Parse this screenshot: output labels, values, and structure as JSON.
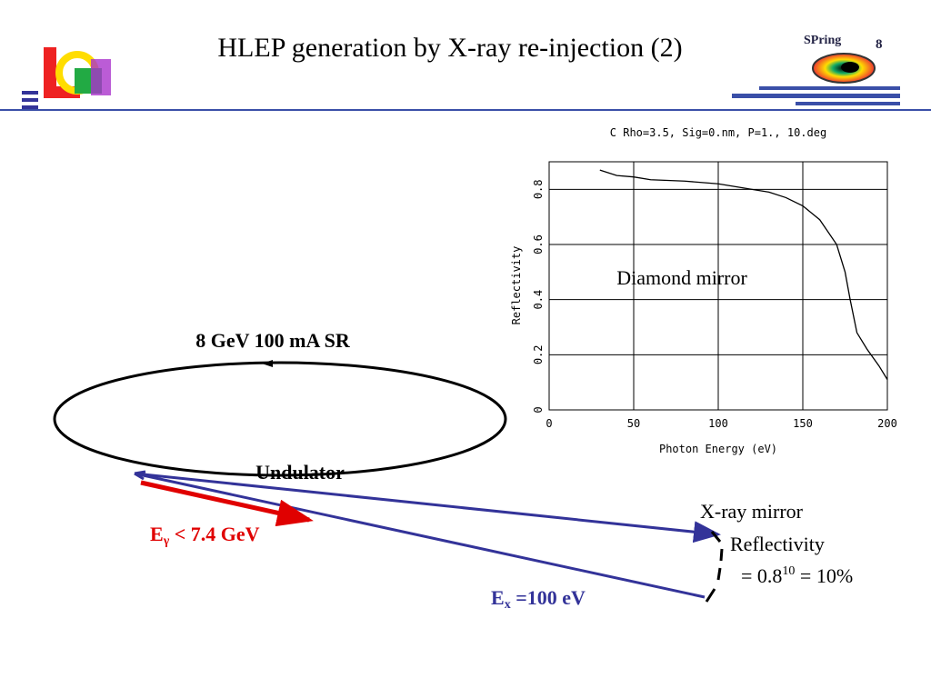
{
  "header": {
    "title": "HLEP generation by X-ray re-injection (2)",
    "logo_text": "SPring",
    "logo_number": "8"
  },
  "diagram": {
    "ring_label": "8 GeV 100 mA SR",
    "undulator_label": "Undulator",
    "gamma_label": {
      "main": "E",
      "sub": "γ",
      "rest": " < 7.4 GeV"
    },
    "xray_label": {
      "main": "E",
      "sub": "x",
      "rest": " =100 eV"
    },
    "mirror_label": "X-ray mirror",
    "reflectivity_label": "Reflectivity",
    "reflectivity_value": {
      "base": "= 0.8",
      "exp": "10",
      "rest": " = 10%"
    }
  },
  "chart_data": {
    "type": "line",
    "title": "C Rho=3.5, Sig=0.nm, P=1., 10.deg",
    "x_label": "Photon Energy (eV)",
    "y_label": "Reflectivity",
    "annotation": "Diamond mirror",
    "x": [
      30,
      40,
      50,
      60,
      80,
      100,
      120,
      130,
      140,
      150,
      160,
      170,
      175,
      178,
      182,
      188,
      195,
      200
    ],
    "values": [
      0.87,
      0.85,
      0.845,
      0.835,
      0.83,
      0.82,
      0.8,
      0.79,
      0.77,
      0.74,
      0.69,
      0.6,
      0.5,
      0.4,
      0.28,
      0.22,
      0.16,
      0.11
    ],
    "color": "#000000",
    "xlim": [
      0,
      200
    ],
    "ylim": [
      0,
      0.9
    ],
    "xticks": [
      0,
      50,
      100,
      150,
      200
    ],
    "yticks": [
      0,
      0.2,
      0.4,
      0.6,
      0.8
    ],
    "grid": true
  }
}
